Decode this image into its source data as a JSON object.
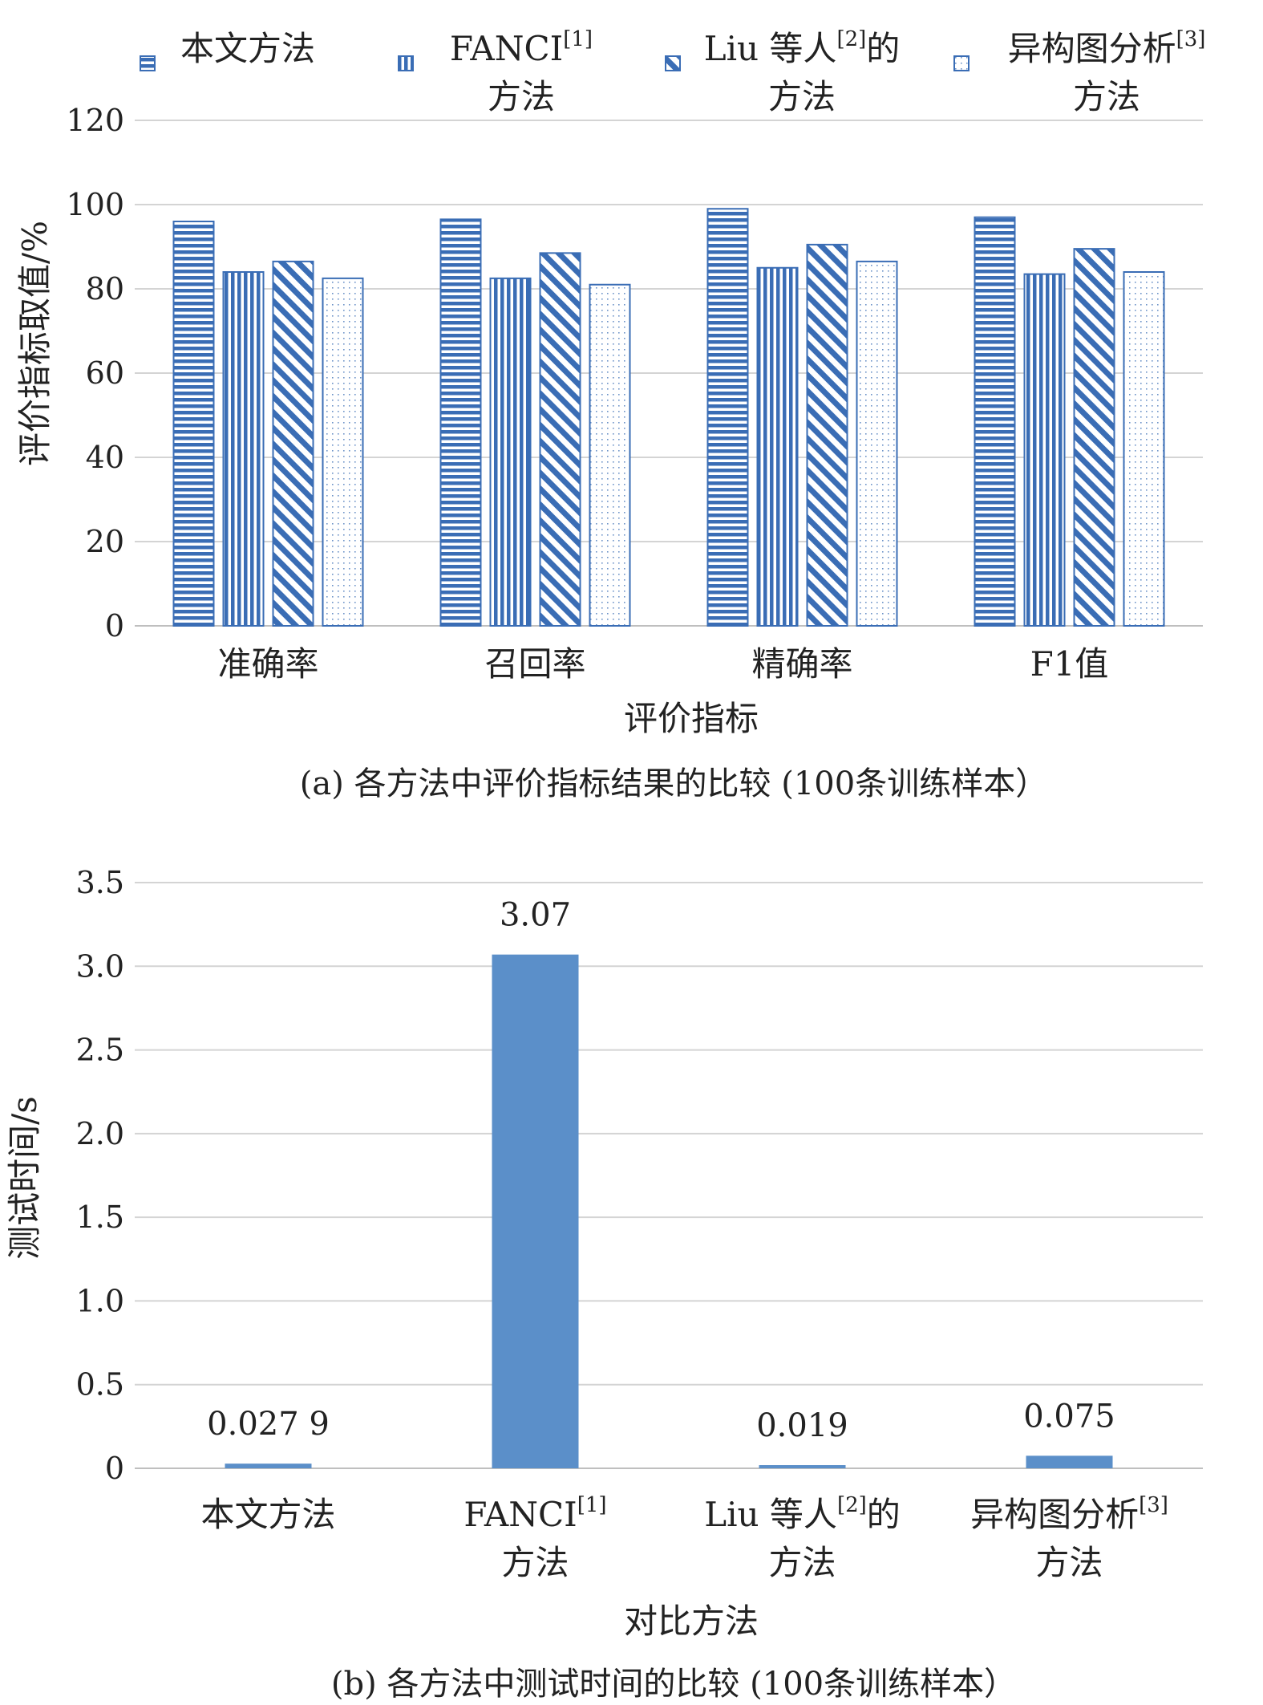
{
  "chart_data": [
    {
      "type": "bar",
      "title": "",
      "caption": "(a) 各方法中评价指标结果的比较 (100条训练样本）",
      "xlabel": "评价指标",
      "ylabel": "评价指标取值/%",
      "ylim": [
        0,
        120
      ],
      "yticks": [
        "0",
        "20",
        "40",
        "60",
        "80",
        "100",
        "120"
      ],
      "categories": [
        "准确率",
        "召回率",
        "精确率",
        "F1值"
      ],
      "grid": true,
      "legend_position": "top",
      "series": [
        {
          "name": "本文方法",
          "name_lines": [
            "本文方法"
          ],
          "sup": "",
          "pattern": "horizontal",
          "values": [
            96,
            96.5,
            99,
            97
          ]
        },
        {
          "name": "FANCI[1]方法",
          "name_lines": [
            "FANCI",
            "方法"
          ],
          "sup": "[1]",
          "pattern": "vertical",
          "values": [
            84,
            82.5,
            85,
            83.5
          ]
        },
        {
          "name": "Liu 等人[2]的方法",
          "name_lines": [
            "Liu 等人",
            "的",
            "方法"
          ],
          "sup": "[2]",
          "pattern": "diagonal",
          "values": [
            86.5,
            88.5,
            90.5,
            89.5
          ]
        },
        {
          "name": "异构图分析[3]方法",
          "name_lines": [
            "异构图分析",
            "方法"
          ],
          "sup": "[3]",
          "pattern": "dots",
          "values": [
            82.5,
            81,
            86.5,
            84
          ]
        }
      ]
    },
    {
      "type": "bar",
      "title": "",
      "caption": "(b) 各方法中测试时间的比较 (100条训练样本）",
      "xlabel": "对比方法",
      "ylabel": "测试时间/s",
      "ylim": [
        0,
        3.5
      ],
      "yticks": [
        "0",
        "0.5",
        "1.0",
        "1.5",
        "2.0",
        "2.5",
        "3.0",
        "3.5"
      ],
      "categories": [
        {
          "lines": [
            "本文方法"
          ],
          "sup": ""
        },
        {
          "lines": [
            "FANCI",
            "方法"
          ],
          "sup": "[1]"
        },
        {
          "lines": [
            "Liu 等人",
            "的",
            "方法"
          ],
          "sup": "[2]"
        },
        {
          "lines": [
            "异构图分析",
            "方法"
          ],
          "sup": "[3]"
        }
      ],
      "values": [
        0.0279,
        3.07,
        0.019,
        0.075
      ],
      "data_labels": [
        "0.027 9",
        "3.07",
        "0.019",
        "0.075"
      ],
      "grid": true,
      "bar_color": "#5b8fc9"
    }
  ],
  "colors": {
    "series_stroke": "#3a6db5",
    "grid": "#d4d4d4",
    "axis": "#bfbfbf"
  }
}
